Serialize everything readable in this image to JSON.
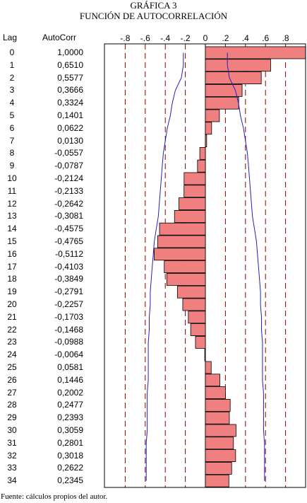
{
  "title_line1": "GRÁFICA 3",
  "title_line2": "FUNCIÓN DE AUTOCORRELACIÓN",
  "headers": {
    "lag": "Lag",
    "autocorr": "AutoCorr"
  },
  "footer": "Fuente: cálculos propios del autor.",
  "colors": {
    "bar_fill": "#f08080",
    "bar_stroke": "#000000",
    "grid": "#8b0000",
    "bound": "#2020c0"
  },
  "chart_data": {
    "type": "bar",
    "orientation": "horizontal",
    "xlim": [
      -1,
      1
    ],
    "x_ticks": [
      -0.8,
      -0.6,
      -0.4,
      -0.2,
      0,
      0.2,
      0.4,
      0.6,
      0.8
    ],
    "x_tick_labels": [
      "-.8",
      "-.6",
      "-.4",
      "-.2",
      "0",
      ".2",
      ".4",
      ".6",
      ".8"
    ],
    "grid": true,
    "categories": [
      0,
      1,
      2,
      3,
      4,
      5,
      6,
      7,
      8,
      9,
      10,
      11,
      12,
      13,
      14,
      15,
      16,
      17,
      18,
      19,
      20,
      21,
      22,
      23,
      24,
      25,
      26,
      27,
      28,
      29,
      30,
      31,
      32,
      33,
      34
    ],
    "value_labels": [
      "1,0000",
      "0,6510",
      "0,5577",
      "0,3666",
      "0,3324",
      "0,1401",
      "0,0622",
      "0,0130",
      "-0,0557",
      "-0,0787",
      "-0,2124",
      "-0,2133",
      "-0,2642",
      "-0,3081",
      "-0,4575",
      "-0,4765",
      "-0,5112",
      "-0,4103",
      "-0,3849",
      "-0,2791",
      "-0,2257",
      "-0,1703",
      "-0,1468",
      "-0,0988",
      "-0,0064",
      "0,0581",
      "0,1446",
      "0,2002",
      "0,2477",
      "0,2393",
      "0,3059",
      "0,2801",
      "0,3018",
      "0,2622",
      "0,2345"
    ],
    "values": [
      1.0,
      0.651,
      0.5577,
      0.3666,
      0.3324,
      0.1401,
      0.0622,
      0.013,
      -0.0557,
      -0.0787,
      -0.2124,
      -0.2133,
      -0.2642,
      -0.3081,
      -0.4575,
      -0.4765,
      -0.5112,
      -0.4103,
      -0.3849,
      -0.2791,
      -0.2257,
      -0.1703,
      -0.1468,
      -0.0988,
      -0.0064,
      0.0581,
      0.1446,
      0.2002,
      0.2477,
      0.2393,
      0.3059,
      0.2801,
      0.3018,
      0.2622,
      0.2345
    ],
    "confidence_bound": [
      0.22,
      0.22,
      0.24,
      0.3,
      0.33,
      0.35,
      0.38,
      0.4,
      0.42,
      0.43,
      0.44,
      0.45,
      0.46,
      0.47,
      0.49,
      0.51,
      0.52,
      0.53,
      0.54,
      0.55,
      0.55,
      0.56,
      0.56,
      0.57,
      0.57,
      0.57,
      0.57,
      0.58,
      0.58,
      0.58,
      0.58,
      0.59,
      0.59,
      0.59,
      0.59
    ]
  }
}
